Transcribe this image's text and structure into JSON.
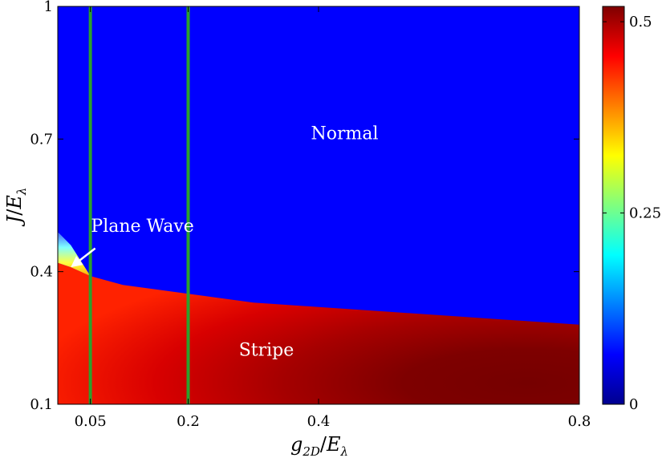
{
  "chart_data": {
    "type": "heatmap",
    "title": "",
    "xlabel": {
      "var": "g",
      "sub": "2D",
      "den": "E",
      "den_sub": "λ"
    },
    "ylabel": {
      "var": "J",
      "den": "E",
      "den_sub": "λ"
    },
    "xlim": [
      0.0,
      0.8
    ],
    "ylim": [
      0.1,
      1.0
    ],
    "x_ticks": [
      0.05,
      0.2,
      0.4,
      0.8
    ],
    "x_tick_labels": [
      "0.05",
      "0.2",
      "0.4",
      "0.8"
    ],
    "y_ticks": [
      0.1,
      0.4,
      0.7,
      1.0
    ],
    "y_tick_labels": [
      "0.1",
      "0.4",
      "0.7",
      "1"
    ],
    "colorbar": {
      "range": [
        0,
        0.52
      ],
      "ticks": [
        0,
        0.25,
        0.5
      ],
      "tick_labels": [
        "0",
        "0.25",
        "0.5"
      ],
      "colormap": "jet"
    },
    "vertical_lines": [
      0.05,
      0.2
    ],
    "vertical_line_color": "#2ca02c",
    "stripe_boundary": {
      "g": [
        0.0,
        0.02,
        0.05,
        0.1,
        0.2,
        0.3,
        0.4,
        0.5,
        0.6,
        0.7,
        0.8
      ],
      "J": [
        0.42,
        0.41,
        0.39,
        0.37,
        0.35,
        0.33,
        0.32,
        0.31,
        0.3,
        0.29,
        0.28
      ]
    },
    "plane_wave_boundary": {
      "g": [
        0.0,
        0.02,
        0.05
      ],
      "J": [
        0.49,
        0.46,
        0.39
      ]
    },
    "regions": [
      {
        "name": "Normal",
        "x": 0.44,
        "y": 0.7
      },
      {
        "name": "Plane Wave",
        "x": 0.13,
        "y": 0.49
      },
      {
        "name": "Stripe",
        "x": 0.32,
        "y": 0.21
      }
    ],
    "annotation_arrow": {
      "from": [
        0.05,
        0.46
      ],
      "to": [
        0.02,
        0.41
      ]
    },
    "colors": {
      "normal": "#0000ff",
      "line": "#2ca02c"
    }
  }
}
